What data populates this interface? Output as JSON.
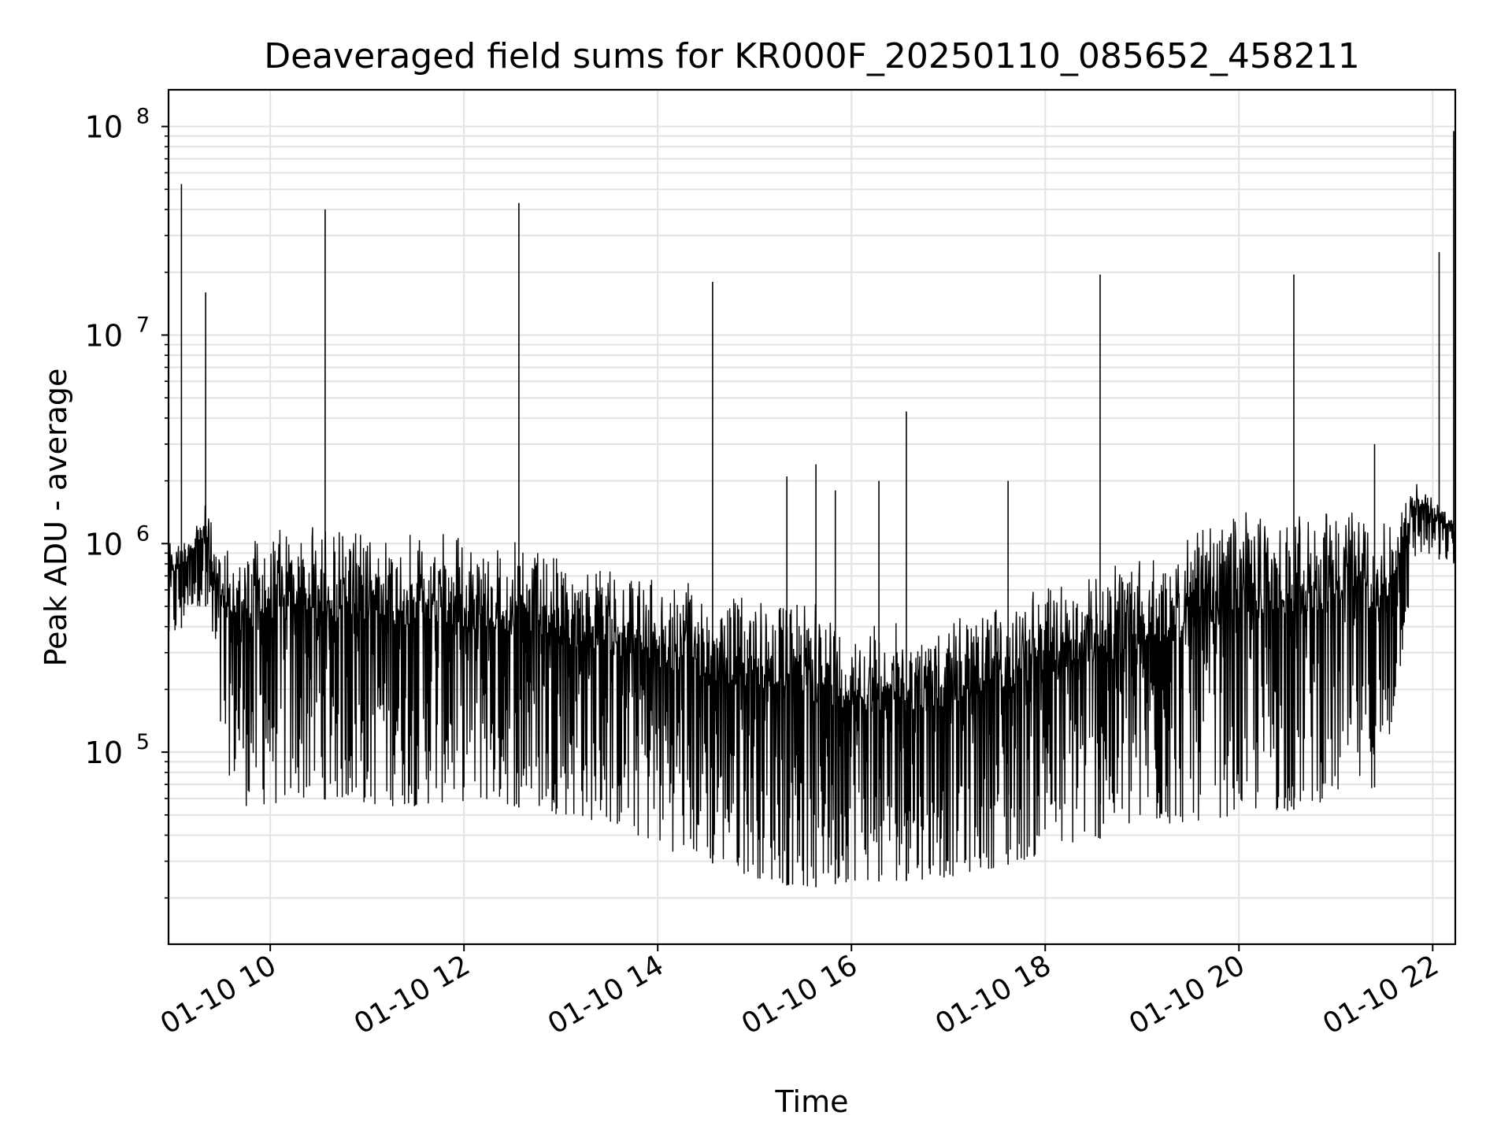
{
  "chart_data": {
    "type": "line",
    "title": "Deaveraged field sums for KR000F_20250110_085652_458211",
    "xlabel": "Time",
    "ylabel": "Peak ADU - average",
    "yscale": "log",
    "xlim": [
      "2025-01-10 08:57",
      "2025-01-10 22:14"
    ],
    "ylim": [
      12000,
      150000000
    ],
    "grid": true,
    "line_color": "#000000",
    "x_ticks": [
      {
        "value": "2025-01-10 10:00",
        "label": "01-10 10"
      },
      {
        "value": "2025-01-10 12:00",
        "label": "01-10 12"
      },
      {
        "value": "2025-01-10 14:00",
        "label": "01-10 14"
      },
      {
        "value": "2025-01-10 16:00",
        "label": "01-10 16"
      },
      {
        "value": "2025-01-10 18:00",
        "label": "01-10 18"
      },
      {
        "value": "2025-01-10 20:00",
        "label": "01-10 20"
      },
      {
        "value": "2025-01-10 22:00",
        "label": "01-10 22"
      }
    ],
    "y_ticks": [
      {
        "value": 100000,
        "base": "10",
        "exp": "5"
      },
      {
        "value": 1000000,
        "base": "10",
        "exp": "6"
      },
      {
        "value": 10000000,
        "base": "10",
        "exp": "7"
      },
      {
        "value": 100000000,
        "base": "10",
        "exp": "8"
      }
    ],
    "series": [
      {
        "upper": [
          [
            "2025-01-10 08:57",
            1000000
          ],
          [
            "2025-01-10 09:12",
            1200000
          ],
          [
            "2025-01-10 09:20",
            1600000
          ],
          [
            "2025-01-10 09:30",
            900000
          ],
          [
            "2025-01-10 09:45",
            1050000
          ],
          [
            "2025-01-10 10:00",
            1200000
          ],
          [
            "2025-01-10 10:30",
            1250000
          ],
          [
            "2025-01-10 11:00",
            1200000
          ],
          [
            "2025-01-10 11:30",
            1150000
          ],
          [
            "2025-01-10 12:00",
            1100000
          ],
          [
            "2025-01-10 12:30",
            1050000
          ],
          [
            "2025-01-10 13:00",
            900000
          ],
          [
            "2025-01-10 13:30",
            800000
          ],
          [
            "2025-01-10 14:00",
            700000
          ],
          [
            "2025-01-10 14:30",
            650000
          ],
          [
            "2025-01-10 15:00",
            600000
          ],
          [
            "2025-01-10 15:30",
            550000
          ],
          [
            "2025-01-10 16:00",
            450000
          ],
          [
            "2025-01-10 16:30",
            430000
          ],
          [
            "2025-01-10 17:00",
            420000
          ],
          [
            "2025-01-10 17:30",
            550000
          ],
          [
            "2025-01-10 18:00",
            650000
          ],
          [
            "2025-01-10 18:30",
            750000
          ],
          [
            "2025-01-10 19:00",
            850000
          ],
          [
            "2025-01-10 19:30",
            1100000
          ],
          [
            "2025-01-10 20:00",
            1400000
          ],
          [
            "2025-01-10 20:30",
            1500000
          ],
          [
            "2025-01-10 21:00",
            1450000
          ],
          [
            "2025-01-10 21:30",
            1400000
          ],
          [
            "2025-01-10 21:50",
            2000000
          ],
          [
            "2025-01-10 22:14",
            1300000
          ]
        ],
        "lower": [
          [
            "2025-01-10 08:57",
            300000
          ],
          [
            "2025-01-10 09:12",
            500000
          ],
          [
            "2025-01-10 09:20",
            500000
          ],
          [
            "2025-01-10 09:30",
            90000
          ],
          [
            "2025-01-10 09:45",
            55000
          ],
          [
            "2025-01-10 10:00",
            55000
          ],
          [
            "2025-01-10 10:30",
            60000
          ],
          [
            "2025-01-10 11:00",
            55000
          ],
          [
            "2025-01-10 11:30",
            55000
          ],
          [
            "2025-01-10 12:00",
            58000
          ],
          [
            "2025-01-10 12:30",
            55000
          ],
          [
            "2025-01-10 13:00",
            50000
          ],
          [
            "2025-01-10 13:30",
            45000
          ],
          [
            "2025-01-10 14:00",
            35000
          ],
          [
            "2025-01-10 14:30",
            30000
          ],
          [
            "2025-01-10 15:00",
            25000
          ],
          [
            "2025-01-10 15:30",
            22000
          ],
          [
            "2025-01-10 16:00",
            24000
          ],
          [
            "2025-01-10 16:30",
            24000
          ],
          [
            "2025-01-10 17:00",
            25000
          ],
          [
            "2025-01-10 17:30",
            28000
          ],
          [
            "2025-01-10 18:00",
            32000
          ],
          [
            "2025-01-10 18:30",
            38000
          ],
          [
            "2025-01-10 19:00",
            42000
          ],
          [
            "2025-01-10 19:30",
            46000
          ],
          [
            "2025-01-10 20:00",
            50000
          ],
          [
            "2025-01-10 20:30",
            52000
          ],
          [
            "2025-01-10 21:00",
            60000
          ],
          [
            "2025-01-10 21:30",
            70000
          ],
          [
            "2025-01-10 21:50",
            900000
          ],
          [
            "2025-01-10 22:14",
            800000
          ]
        ],
        "spikes": [
          [
            "2025-01-10 09:05",
            53000000
          ],
          [
            "2025-01-10 09:20",
            16000000
          ],
          [
            "2025-01-10 10:34",
            40000000
          ],
          [
            "2025-01-10 12:34",
            43000000
          ],
          [
            "2025-01-10 14:34",
            18000000
          ],
          [
            "2025-01-10 15:20",
            2100000
          ],
          [
            "2025-01-10 15:38",
            2400000
          ],
          [
            "2025-01-10 15:50",
            1800000
          ],
          [
            "2025-01-10 16:17",
            2000000
          ],
          [
            "2025-01-10 16:34",
            4300000
          ],
          [
            "2025-01-10 17:37",
            2000000
          ],
          [
            "2025-01-10 18:34",
            19500000
          ],
          [
            "2025-01-10 20:34",
            19500000
          ],
          [
            "2025-01-10 21:24",
            3000000
          ],
          [
            "2025-01-10 22:04",
            25000000
          ],
          [
            "2025-01-10 22:13",
            95000000
          ]
        ]
      }
    ]
  }
}
